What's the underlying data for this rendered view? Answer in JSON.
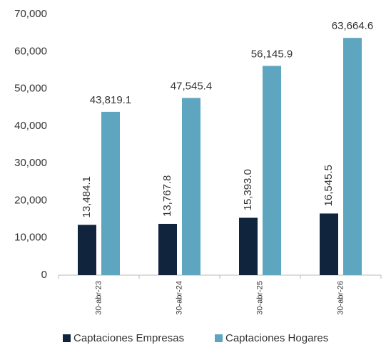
{
  "chart_data": {
    "type": "bar",
    "categories": [
      "30-abr-23",
      "30-abr-24",
      "30-abr-25",
      "30-abr-26"
    ],
    "series": [
      {
        "name": "Captaciones Empresas",
        "color": "#10243e",
        "values": [
          13484.1,
          13767.8,
          15393.0,
          16545.5
        ],
        "value_labels": [
          "13,484.1",
          "13,767.8",
          "15,393.0",
          "16,545.5"
        ]
      },
      {
        "name": "Captaciones Hogares",
        "color": "#5ea5c0",
        "values": [
          43819.1,
          47545.4,
          56145.9,
          63664.6
        ],
        "value_labels": [
          "43,819.1",
          "47,545.4",
          "56,145.9",
          "63,664.6"
        ]
      }
    ],
    "ylim": [
      0,
      70000
    ],
    "yticks": [
      0,
      {
        "value": 10000,
        "label": "10,000"
      },
      {
        "value": 20000,
        "label": "20,000"
      },
      {
        "value": 30000,
        "label": "30,000"
      },
      {
        "value": 40000,
        "label": "40,000"
      },
      {
        "value": 50000,
        "label": "50,000"
      },
      {
        "value": 60000,
        "label": "60,000"
      },
      {
        "value": 70000,
        "label": "70,000"
      }
    ],
    "grid": false
  }
}
